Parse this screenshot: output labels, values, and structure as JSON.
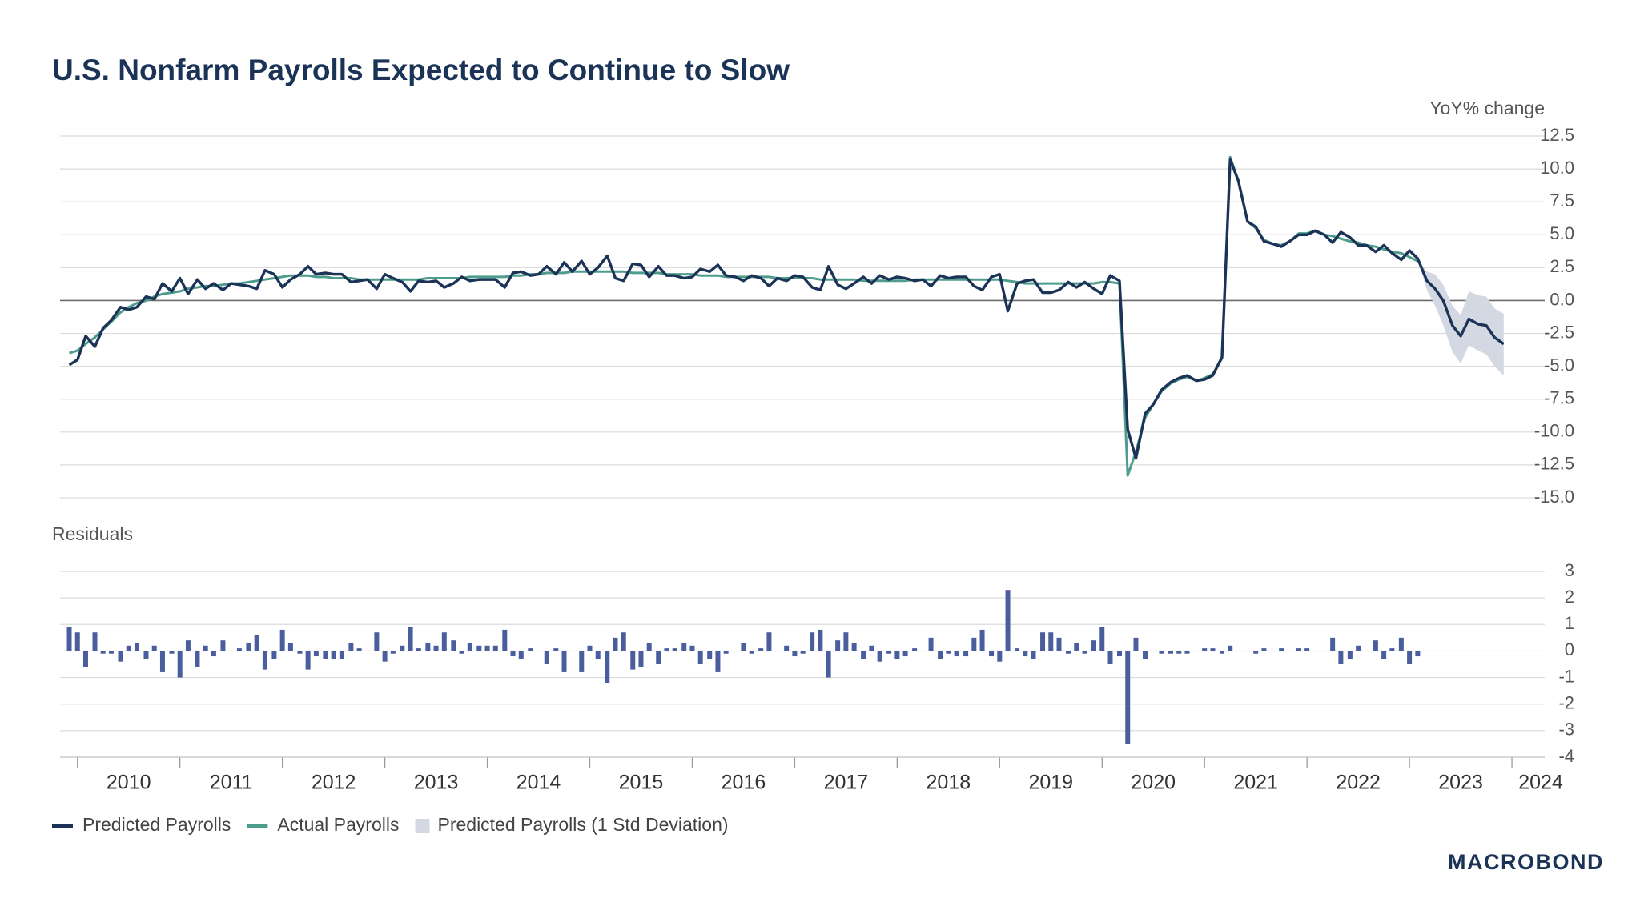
{
  "logo": "MACROBOND",
  "chart_data": [
    {
      "type": "line",
      "title": "U.S. Nonfarm Payrolls Expected to Continue to Slow",
      "y_label": "YoY% change",
      "x": [
        2009.92,
        2010,
        2010.08,
        2010.17,
        2010.25,
        2010.33,
        2010.42,
        2010.5,
        2010.58,
        2010.67,
        2010.75,
        2010.83,
        2010.92,
        2011,
        2011.08,
        2011.17,
        2011.25,
        2011.33,
        2011.42,
        2011.5,
        2011.58,
        2011.67,
        2011.75,
        2011.83,
        2011.92,
        2012,
        2012.08,
        2012.17,
        2012.25,
        2012.33,
        2012.42,
        2012.5,
        2012.58,
        2012.67,
        2012.75,
        2012.83,
        2012.92,
        2013,
        2013.08,
        2013.17,
        2013.25,
        2013.33,
        2013.42,
        2013.5,
        2013.58,
        2013.67,
        2013.75,
        2013.83,
        2013.92,
        2014,
        2014.08,
        2014.17,
        2014.25,
        2014.33,
        2014.42,
        2014.5,
        2014.58,
        2014.67,
        2014.75,
        2014.83,
        2014.92,
        2015,
        2015.08,
        2015.17,
        2015.25,
        2015.33,
        2015.42,
        2015.5,
        2015.58,
        2015.67,
        2015.75,
        2015.83,
        2015.92,
        2016,
        2016.08,
        2016.17,
        2016.25,
        2016.33,
        2016.42,
        2016.5,
        2016.58,
        2016.67,
        2016.75,
        2016.83,
        2016.92,
        2017,
        2017.08,
        2017.17,
        2017.25,
        2017.33,
        2017.42,
        2017.5,
        2017.58,
        2017.67,
        2017.75,
        2017.83,
        2017.92,
        2018,
        2018.08,
        2018.17,
        2018.25,
        2018.33,
        2018.42,
        2018.5,
        2018.58,
        2018.67,
        2018.75,
        2018.83,
        2018.92,
        2019,
        2019.08,
        2019.17,
        2019.25,
        2019.33,
        2019.42,
        2019.5,
        2019.58,
        2019.67,
        2019.75,
        2019.83,
        2019.92,
        2020,
        2020.08,
        2020.17,
        2020.25,
        2020.33,
        2020.42,
        2020.5,
        2020.58,
        2020.67,
        2020.75,
        2020.83,
        2020.92,
        2021,
        2021.08,
        2021.17,
        2021.25,
        2021.33,
        2021.42,
        2021.5,
        2021.58,
        2021.67,
        2021.75,
        2021.83,
        2021.92,
        2022,
        2022.08,
        2022.17,
        2022.25,
        2022.33,
        2022.42,
        2022.5,
        2022.58,
        2022.67,
        2022.75,
        2022.83,
        2022.92,
        2023,
        2023.08,
        2023.17,
        2023.25,
        2023.33,
        2023.42,
        2023.5,
        2023.58,
        2023.67,
        2023.75,
        2023.83,
        2023.92
      ],
      "xlim": [
        2009.83,
        2024.32
      ],
      "ylim": [
        -15,
        12.5
      ],
      "yticks": [
        12.5,
        {
          "value": 10,
          "label": "10.0"
        },
        7.5,
        {
          "value": 5,
          "label": "5.0"
        },
        2.5,
        {
          "value": 0,
          "label": "0.0"
        },
        -2.5,
        {
          "value": -5,
          "label": "-5.0"
        },
        -7.5,
        {
          "value": -10,
          "label": "-10.0"
        },
        -12.5,
        {
          "value": -15,
          "label": "-15.0"
        }
      ],
      "grid": true,
      "series": [
        {
          "name": "Predicted Payrolls",
          "color": "#1b3357",
          "values": [
            -4.9,
            -4.5,
            -2.7,
            -3.5,
            -2.1,
            -1.5,
            -0.5,
            -0.7,
            -0.5,
            0.3,
            0.1,
            1.3,
            0.7,
            1.7,
            0.5,
            1.6,
            0.9,
            1.3,
            0.8,
            1.3,
            1.2,
            1.1,
            0.9,
            2.3,
            2.0,
            1.0,
            1.6,
            2.0,
            2.6,
            2.0,
            2.1,
            2.0,
            2.0,
            1.4,
            1.5,
            1.6,
            0.9,
            2.0,
            1.7,
            1.4,
            0.7,
            1.5,
            1.4,
            1.5,
            1.0,
            1.3,
            1.8,
            1.5,
            1.6,
            1.6,
            1.6,
            1.0,
            2.1,
            2.2,
            1.9,
            2.0,
            2.6,
            2.0,
            2.9,
            2.2,
            3.0,
            2.0,
            2.5,
            3.4,
            1.7,
            1.5,
            2.8,
            2.7,
            1.8,
            2.6,
            1.9,
            1.9,
            1.7,
            1.8,
            2.4,
            2.2,
            2.7,
            1.9,
            1.8,
            1.5,
            1.9,
            1.7,
            1.1,
            1.7,
            1.5,
            1.9,
            1.8,
            1.0,
            0.8,
            2.6,
            1.2,
            0.9,
            1.3,
            1.8,
            1.3,
            1.9,
            1.6,
            1.8,
            1.7,
            1.5,
            1.6,
            1.1,
            1.9,
            1.7,
            1.8,
            1.8,
            1.1,
            0.8,
            1.8,
            2.0,
            -0.8,
            1.3,
            1.5,
            1.6,
            0.6,
            0.6,
            0.8,
            1.4,
            1.0,
            1.4,
            0.9,
            0.5,
            1.9,
            1.5,
            -9.8,
            -12.0,
            -8.6,
            -7.9,
            -6.8,
            -6.2,
            -5.9,
            -5.7,
            -6.1,
            -6.0,
            -5.7,
            -4.3,
            10.7,
            9.1,
            6.0,
            5.6,
            4.5,
            4.3,
            4.1,
            4.5,
            5.0,
            5.0,
            5.3,
            5.0,
            4.4,
            5.2,
            4.8,
            4.2,
            4.2,
            3.7,
            4.2,
            3.6,
            3.1,
            3.8,
            3.2,
            1.5,
            0.9,
            0.0,
            -1.9,
            -2.7,
            -1.4,
            -1.8,
            -1.9,
            -2.8,
            -3.3
          ]
        },
        {
          "name": "Actual Payrolls",
          "color": "#4e9c8c",
          "values": [
            -4.0,
            -3.8,
            -3.3,
            -2.8,
            -2.2,
            -1.6,
            -0.9,
            -0.5,
            -0.2,
            0.0,
            0.3,
            0.5,
            0.6,
            0.7,
            0.9,
            1.0,
            1.1,
            1.1,
            1.2,
            1.3,
            1.3,
            1.4,
            1.5,
            1.6,
            1.7,
            1.8,
            1.9,
            1.9,
            1.9,
            1.8,
            1.8,
            1.7,
            1.7,
            1.7,
            1.6,
            1.6,
            1.6,
            1.6,
            1.6,
            1.6,
            1.6,
            1.6,
            1.7,
            1.7,
            1.7,
            1.7,
            1.7,
            1.8,
            1.8,
            1.8,
            1.8,
            1.8,
            1.9,
            1.9,
            2.0,
            2.0,
            2.1,
            2.1,
            2.1,
            2.2,
            2.2,
            2.2,
            2.2,
            2.2,
            2.2,
            2.2,
            2.1,
            2.1,
            2.1,
            2.1,
            2.0,
            2.0,
            2.0,
            2.0,
            1.9,
            1.9,
            1.9,
            1.8,
            1.8,
            1.8,
            1.8,
            1.8,
            1.8,
            1.7,
            1.7,
            1.7,
            1.7,
            1.7,
            1.6,
            1.6,
            1.6,
            1.6,
            1.6,
            1.5,
            1.5,
            1.5,
            1.5,
            1.5,
            1.5,
            1.6,
            1.6,
            1.6,
            1.6,
            1.6,
            1.6,
            1.6,
            1.6,
            1.6,
            1.6,
            1.6,
            1.5,
            1.4,
            1.3,
            1.3,
            1.3,
            1.3,
            1.3,
            1.3,
            1.3,
            1.3,
            1.3,
            1.4,
            1.4,
            1.3,
            -13.3,
            -11.5,
            -8.9,
            -7.9,
            -6.9,
            -6.3,
            -6.0,
            -5.8,
            -6.1,
            -5.9,
            -5.6,
            -4.4,
            10.9,
            9.1,
            6.0,
            5.5,
            4.6,
            4.3,
            4.2,
            4.5,
            5.1,
            5.1,
            5.3,
            5.0,
            4.9,
            4.7,
            4.5,
            4.4,
            4.2,
            4.1,
            3.9,
            3.7,
            3.6,
            3.3,
            3.0,
            null,
            null,
            null,
            null,
            null,
            null,
            null,
            null,
            null,
            null
          ]
        }
      ],
      "band": {
        "name": "Predicted Payrolls (1 Std Deviation)",
        "color": "#d3d8e2",
        "x": [
          2023.08,
          2023.17,
          2023.25,
          2023.33,
          2023.42,
          2023.5,
          2023.58,
          2023.67,
          2023.75,
          2023.83,
          2023.92
        ],
        "lower": [
          3.2,
          0.8,
          -0.4,
          -1.9,
          -3.9,
          -4.8,
          -3.4,
          -3.8,
          -4.1,
          -5.0,
          -5.7
        ],
        "upper": [
          3.2,
          2.2,
          2.0,
          1.2,
          -0.4,
          -1.1,
          0.7,
          0.4,
          0.3,
          -0.6,
          -1.0
        ]
      }
    },
    {
      "type": "bar",
      "title": "Residuals",
      "color": "#4a5e9e",
      "x": [
        2009.92,
        2010,
        2010.08,
        2010.17,
        2010.25,
        2010.33,
        2010.42,
        2010.5,
        2010.58,
        2010.67,
        2010.75,
        2010.83,
        2010.92,
        2011,
        2011.08,
        2011.17,
        2011.25,
        2011.33,
        2011.42,
        2011.5,
        2011.58,
        2011.67,
        2011.75,
        2011.83,
        2011.92,
        2012,
        2012.08,
        2012.17,
        2012.25,
        2012.33,
        2012.42,
        2012.5,
        2012.58,
        2012.67,
        2012.75,
        2012.83,
        2012.92,
        2013,
        2013.08,
        2013.17,
        2013.25,
        2013.33,
        2013.42,
        2013.5,
        2013.58,
        2013.67,
        2013.75,
        2013.83,
        2013.92,
        2014,
        2014.08,
        2014.17,
        2014.25,
        2014.33,
        2014.42,
        2014.5,
        2014.58,
        2014.67,
        2014.75,
        2014.83,
        2014.92,
        2015,
        2015.08,
        2015.17,
        2015.25,
        2015.33,
        2015.42,
        2015.5,
        2015.58,
        2015.67,
        2015.75,
        2015.83,
        2015.92,
        2016,
        2016.08,
        2016.17,
        2016.25,
        2016.33,
        2016.42,
        2016.5,
        2016.58,
        2016.67,
        2016.75,
        2016.83,
        2016.92,
        2017,
        2017.08,
        2017.17,
        2017.25,
        2017.33,
        2017.42,
        2017.5,
        2017.58,
        2017.67,
        2017.75,
        2017.83,
        2017.92,
        2018,
        2018.08,
        2018.17,
        2018.25,
        2018.33,
        2018.42,
        2018.5,
        2018.58,
        2018.67,
        2018.75,
        2018.83,
        2018.92,
        2019,
        2019.08,
        2019.17,
        2019.25,
        2019.33,
        2019.42,
        2019.5,
        2019.58,
        2019.67,
        2019.75,
        2019.83,
        2019.92,
        2020,
        2020.08,
        2020.17,
        2020.25,
        2020.33,
        2020.42,
        2020.5,
        2020.58,
        2020.67,
        2020.75,
        2020.83,
        2020.92,
        2021,
        2021.08,
        2021.17,
        2021.25,
        2021.33,
        2021.42,
        2021.5,
        2021.58,
        2021.67,
        2021.75,
        2021.83,
        2021.92,
        2022,
        2022.08,
        2022.17,
        2022.25,
        2022.33,
        2022.42,
        2022.5,
        2022.58,
        2022.67,
        2022.75,
        2022.83,
        2022.92,
        2023,
        2023.08
      ],
      "values": [
        0.9,
        0.7,
        -0.6,
        0.7,
        -0.1,
        -0.1,
        -0.4,
        0.2,
        0.3,
        -0.3,
        0.2,
        -0.8,
        -0.1,
        -1.0,
        0.4,
        -0.6,
        0.2,
        -0.2,
        0.4,
        0.0,
        0.1,
        0.3,
        0.6,
        -0.7,
        -0.3,
        0.8,
        0.3,
        -0.1,
        -0.7,
        -0.2,
        -0.3,
        -0.3,
        -0.3,
        0.3,
        0.1,
        0.0,
        0.7,
        -0.4,
        -0.1,
        0.2,
        0.9,
        0.1,
        0.3,
        0.2,
        0.7,
        0.4,
        -0.1,
        0.3,
        0.2,
        0.2,
        0.2,
        0.8,
        -0.2,
        -0.3,
        0.1,
        0.0,
        -0.5,
        0.1,
        -0.8,
        0.0,
        -0.8,
        0.2,
        -0.3,
        -1.2,
        0.5,
        0.7,
        -0.7,
        -0.6,
        0.3,
        -0.5,
        0.1,
        0.1,
        0.3,
        0.2,
        -0.5,
        -0.3,
        -0.8,
        -0.1,
        0.0,
        0.3,
        -0.1,
        0.1,
        0.7,
        0.0,
        0.2,
        -0.2,
        -0.1,
        0.7,
        0.8,
        -1.0,
        0.4,
        0.7,
        0.3,
        -0.3,
        0.2,
        -0.4,
        -0.1,
        -0.3,
        -0.2,
        0.1,
        0.0,
        0.5,
        -0.3,
        -0.1,
        -0.2,
        -0.2,
        0.5,
        0.8,
        -0.2,
        -0.4,
        2.3,
        0.1,
        -0.2,
        -0.3,
        0.7,
        0.7,
        0.5,
        -0.1,
        0.3,
        -0.1,
        0.4,
        0.9,
        -0.5,
        -0.2,
        -3.5,
        0.5,
        -0.3,
        0.0,
        -0.1,
        -0.1,
        -0.1,
        -0.1,
        0.0,
        0.1,
        0.1,
        -0.1,
        0.2,
        0.0,
        0.0,
        -0.1,
        0.1,
        0.0,
        0.1,
        0.0,
        0.1,
        0.1,
        0.0,
        0.0,
        0.5,
        -0.5,
        -0.3,
        0.2,
        0.0,
        0.4,
        -0.3,
        0.1,
        0.5,
        -0.5,
        -0.2
      ],
      "xlim": [
        2009.83,
        2024.32
      ],
      "xticks": [
        2010,
        2011,
        2012,
        2013,
        2014,
        2015,
        2016,
        2017,
        2018,
        2019,
        2020,
        2021,
        2022,
        2023,
        2024
      ],
      "ylim": [
        -4,
        3
      ],
      "yticks": [
        3,
        2,
        1,
        0,
        -1,
        -2,
        -3,
        -4
      ],
      "grid": true
    }
  ]
}
